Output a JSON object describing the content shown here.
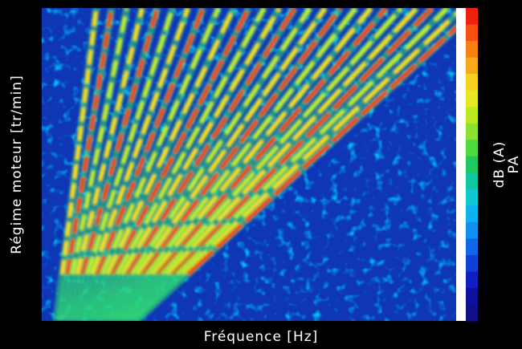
{
  "chart_data": {
    "type": "heatmap",
    "xlabel": "Fréquence [Hz]",
    "ylabel": "Régime moteur [tr/min]",
    "colorbar_label": "dB (A)",
    "colorbar_sublabel": "PA"
  }
}
